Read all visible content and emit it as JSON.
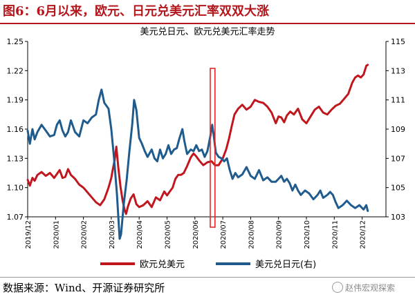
{
  "header": {
    "figure_title": "图6：6月以来，欧元、日元兑美元汇率双双大涨"
  },
  "footer": {
    "source": "数据来源：Wind、开源证券研究所",
    "watermark": "赵伟宏观探索"
  },
  "chart_data": {
    "type": "line",
    "title": "美元兑日元、欧元兑美元汇率走势",
    "categories": [
      "2019/12",
      "2020/01",
      "2020/02",
      "2020/03",
      "2020/04",
      "2020/05",
      "2020/06",
      "2020/07",
      "2020/08",
      "2020/09",
      "2020/10",
      "2020/11",
      "2020/12"
    ],
    "y_left": {
      "ticks": [
        1.07,
        1.1,
        1.13,
        1.16,
        1.19,
        1.22,
        1.25
      ],
      "range": [
        1.07,
        1.25
      ]
    },
    "y_right": {
      "ticks": [
        103,
        105,
        107,
        109,
        111,
        113,
        115
      ],
      "range": [
        103,
        115
      ]
    },
    "colors": {
      "eur": "#c0161d",
      "jpy": "#1f5b8d",
      "highlight": "#e0262b"
    },
    "highlight": {
      "label": "",
      "x_range": [
        6.55,
        6.72
      ]
    },
    "series": [
      {
        "name": "欧元兑美元",
        "axis": "left",
        "points": [
          [
            0.0,
            1.108
          ],
          [
            0.08,
            1.102
          ],
          [
            0.17,
            1.11
          ],
          [
            0.25,
            1.107
          ],
          [
            0.35,
            1.113
          ],
          [
            0.5,
            1.116
          ],
          [
            0.65,
            1.112
          ],
          [
            0.8,
            1.115
          ],
          [
            0.95,
            1.11
          ],
          [
            1.05,
            1.114
          ],
          [
            1.15,
            1.118
          ],
          [
            1.25,
            1.11
          ],
          [
            1.35,
            1.111
          ],
          [
            1.45,
            1.119
          ],
          [
            1.55,
            1.113
          ],
          [
            1.7,
            1.109
          ],
          [
            1.85,
            1.103
          ],
          [
            2.0,
            1.1
          ],
          [
            2.15,
            1.095
          ],
          [
            2.3,
            1.09
          ],
          [
            2.45,
            1.085
          ],
          [
            2.6,
            1.082
          ],
          [
            2.75,
            1.088
          ],
          [
            2.9,
            1.1
          ],
          [
            3.0,
            1.11
          ],
          [
            3.05,
            1.118
          ],
          [
            3.12,
            1.128
          ],
          [
            3.18,
            1.142
          ],
          [
            3.25,
            1.121
          ],
          [
            3.33,
            1.101
          ],
          [
            3.4,
            1.088
          ],
          [
            3.47,
            1.078
          ],
          [
            3.53,
            1.073
          ],
          [
            3.6,
            1.081
          ],
          [
            3.7,
            1.089
          ],
          [
            3.8,
            1.093
          ],
          [
            3.9,
            1.083
          ],
          [
            4.0,
            1.08
          ],
          [
            4.15,
            1.082
          ],
          [
            4.3,
            1.086
          ],
          [
            4.45,
            1.08
          ],
          [
            4.6,
            1.09
          ],
          [
            4.75,
            1.087
          ],
          [
            4.9,
            1.096
          ],
          [
            5.0,
            1.092
          ],
          [
            5.1,
            1.096
          ],
          [
            5.2,
            1.1
          ],
          [
            5.3,
            1.109
          ],
          [
            5.4,
            1.113
          ],
          [
            5.5,
            1.113
          ],
          [
            5.6,
            1.115
          ],
          [
            5.72,
            1.122
          ],
          [
            5.85,
            1.131
          ],
          [
            5.95,
            1.135
          ],
          [
            6.05,
            1.132
          ],
          [
            6.15,
            1.128
          ],
          [
            6.3,
            1.123
          ],
          [
            6.45,
            1.126
          ],
          [
            6.6,
            1.127
          ],
          [
            6.72,
            1.123
          ],
          [
            6.85,
            1.123
          ],
          [
            7.0,
            1.13
          ],
          [
            7.12,
            1.139
          ],
          [
            7.22,
            1.15
          ],
          [
            7.32,
            1.163
          ],
          [
            7.42,
            1.175
          ],
          [
            7.55,
            1.181
          ],
          [
            7.7,
            1.185
          ],
          [
            7.85,
            1.18
          ],
          [
            8.0,
            1.183
          ],
          [
            8.15,
            1.19
          ],
          [
            8.3,
            1.188
          ],
          [
            8.45,
            1.187
          ],
          [
            8.6,
            1.183
          ],
          [
            8.75,
            1.177
          ],
          [
            8.9,
            1.166
          ],
          [
            9.0,
            1.173
          ],
          [
            9.1,
            1.172
          ],
          [
            9.2,
            1.167
          ],
          [
            9.3,
            1.174
          ],
          [
            9.42,
            1.178
          ],
          [
            9.55,
            1.175
          ],
          [
            9.7,
            1.181
          ],
          [
            9.85,
            1.17
          ],
          [
            10.0,
            1.166
          ],
          [
            10.15,
            1.173
          ],
          [
            10.3,
            1.18
          ],
          [
            10.45,
            1.183
          ],
          [
            10.6,
            1.177
          ],
          [
            10.75,
            1.175
          ],
          [
            10.9,
            1.18
          ],
          [
            11.05,
            1.184
          ],
          [
            11.2,
            1.186
          ],
          [
            11.35,
            1.191
          ],
          [
            11.5,
            1.196
          ],
          [
            11.65,
            1.208
          ],
          [
            11.75,
            1.213
          ],
          [
            11.85,
            1.215
          ],
          [
            11.95,
            1.213
          ],
          [
            12.05,
            1.216
          ],
          [
            12.15,
            1.225
          ],
          [
            12.2,
            1.226
          ]
        ]
      },
      {
        "name": "美元兑日元(右)",
        "axis": "right",
        "points": [
          [
            0.0,
            108.9
          ],
          [
            0.08,
            108.0
          ],
          [
            0.17,
            109.0
          ],
          [
            0.25,
            108.3
          ],
          [
            0.35,
            108.8
          ],
          [
            0.5,
            109.3
          ],
          [
            0.65,
            108.9
          ],
          [
            0.8,
            108.5
          ],
          [
            0.95,
            108.6
          ],
          [
            1.05,
            109.3
          ],
          [
            1.15,
            109.6
          ],
          [
            1.25,
            108.9
          ],
          [
            1.35,
            108.5
          ],
          [
            1.45,
            108.8
          ],
          [
            1.55,
            109.6
          ],
          [
            1.7,
            108.8
          ],
          [
            1.85,
            108.5
          ],
          [
            2.0,
            109.6
          ],
          [
            2.15,
            109.4
          ],
          [
            2.3,
            109.8
          ],
          [
            2.45,
            110.0
          ],
          [
            2.55,
            111.0
          ],
          [
            2.65,
            111.7
          ],
          [
            2.75,
            110.8
          ],
          [
            2.9,
            110.4
          ],
          [
            3.0,
            109.0
          ],
          [
            3.1,
            107.0
          ],
          [
            3.2,
            104.6
          ],
          [
            3.3,
            101.5
          ],
          [
            3.35,
            101.8
          ],
          [
            3.45,
            103.9
          ],
          [
            3.55,
            105.5
          ],
          [
            3.65,
            107.5
          ],
          [
            3.75,
            109.3
          ],
          [
            3.82,
            111.0
          ],
          [
            3.9,
            110.3
          ],
          [
            4.0,
            108.4
          ],
          [
            4.1,
            108.0
          ],
          [
            4.2,
            107.5
          ],
          [
            4.3,
            107.1
          ],
          [
            4.45,
            107.6
          ],
          [
            4.55,
            107.0
          ],
          [
            4.65,
            106.8
          ],
          [
            4.75,
            107.6
          ],
          [
            4.85,
            107.0
          ],
          [
            4.95,
            107.3
          ],
          [
            5.05,
            107.9
          ],
          [
            5.15,
            107.3
          ],
          [
            5.25,
            107.6
          ],
          [
            5.35,
            107.7
          ],
          [
            5.45,
            108.4
          ],
          [
            5.55,
            109.0
          ],
          [
            5.62,
            108.2
          ],
          [
            5.72,
            107.3
          ],
          [
            5.85,
            107.6
          ],
          [
            5.95,
            107.5
          ],
          [
            6.05,
            107.9
          ],
          [
            6.15,
            107.5
          ],
          [
            6.25,
            107.6
          ],
          [
            6.35,
            107.1
          ],
          [
            6.45,
            107.5
          ],
          [
            6.55,
            108.5
          ],
          [
            6.62,
            109.3
          ],
          [
            6.68,
            108.5
          ],
          [
            6.75,
            107.4
          ],
          [
            6.85,
            107.1
          ],
          [
            6.95,
            107.0
          ],
          [
            7.05,
            106.8
          ],
          [
            7.15,
            107.0
          ],
          [
            7.25,
            106.2
          ],
          [
            7.35,
            105.6
          ],
          [
            7.45,
            106.0
          ],
          [
            7.55,
            105.7
          ],
          [
            7.7,
            105.9
          ],
          [
            7.85,
            106.4
          ],
          [
            8.0,
            105.8
          ],
          [
            8.15,
            105.6
          ],
          [
            8.3,
            106.2
          ],
          [
            8.45,
            105.5
          ],
          [
            8.6,
            105.7
          ],
          [
            8.75,
            105.4
          ],
          [
            8.9,
            105.4
          ],
          [
            9.0,
            105.6
          ],
          [
            9.1,
            105.8
          ],
          [
            9.2,
            105.4
          ],
          [
            9.3,
            105.6
          ],
          [
            9.4,
            105.3
          ],
          [
            9.5,
            104.8
          ],
          [
            9.6,
            105.2
          ],
          [
            9.7,
            104.8
          ],
          [
            9.8,
            104.5
          ],
          [
            9.95,
            104.8
          ],
          [
            10.1,
            104.6
          ],
          [
            10.25,
            104.2
          ],
          [
            10.4,
            104.5
          ],
          [
            10.5,
            104.8
          ],
          [
            10.6,
            104.3
          ],
          [
            10.75,
            104.5
          ],
          [
            10.85,
            104.7
          ],
          [
            10.95,
            104.5
          ],
          [
            11.05,
            104.0
          ],
          [
            11.15,
            103.6
          ],
          [
            11.3,
            103.8
          ],
          [
            11.45,
            104.1
          ],
          [
            11.6,
            103.8
          ],
          [
            11.75,
            103.6
          ],
          [
            11.9,
            103.8
          ],
          [
            12.05,
            103.5
          ],
          [
            12.15,
            103.8
          ],
          [
            12.2,
            103.4
          ]
        ]
      }
    ]
  }
}
